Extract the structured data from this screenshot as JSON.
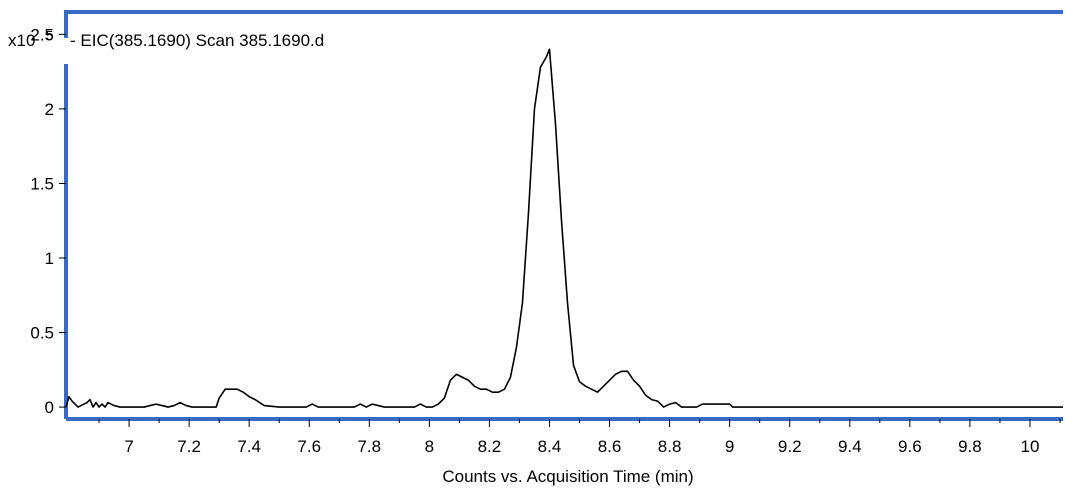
{
  "chart_data": {
    "type": "line",
    "title": "- EIC(385.1690) Scan 385.1690.d",
    "xlabel": "Counts vs. Acquisition Time (min)",
    "ylabel": "",
    "y_scale_label": "x10",
    "y_scale_exponent": "5",
    "xlim": [
      6.79,
      10.11
    ],
    "ylim": [
      -0.08,
      2.65
    ],
    "x_ticks": [
      7,
      7.2,
      7.4,
      7.6,
      7.8,
      8,
      8.2,
      8.4,
      8.6,
      8.8,
      9,
      9.2,
      9.4,
      9.6,
      9.8,
      10
    ],
    "y_ticks": [
      0,
      0.5,
      1,
      1.5,
      2,
      2.5
    ],
    "x_tick_labels": [
      "7",
      "7.2",
      "7.4",
      "7.6",
      "7.8",
      "8",
      "8.2",
      "8.4",
      "8.6",
      "8.8",
      "9",
      "9.2",
      "9.4",
      "9.6",
      "9.8",
      "10"
    ],
    "y_tick_labels": [
      "0",
      "0.5",
      "1",
      "1.5",
      "2",
      "2.5"
    ],
    "grid": false,
    "line_color": "#000000",
    "frame_color": "#3a6bc4",
    "series": [
      {
        "x": [
          6.79,
          6.8,
          6.81,
          6.83,
          6.85,
          6.86,
          6.87,
          6.88,
          6.89,
          6.9,
          6.91,
          6.92,
          6.93,
          6.95,
          6.97,
          7.0,
          7.05,
          7.07,
          7.09,
          7.11,
          7.13,
          7.15,
          7.17,
          7.19,
          7.21,
          7.25,
          7.29,
          7.3,
          7.32,
          7.34,
          7.36,
          7.38,
          7.4,
          7.42,
          7.45,
          7.5,
          7.55,
          7.59,
          7.61,
          7.63,
          7.7,
          7.75,
          7.77,
          7.79,
          7.81,
          7.85,
          7.9,
          7.95,
          7.97,
          7.99,
          8.01,
          8.03,
          8.05,
          8.07,
          8.09,
          8.11,
          8.13,
          8.15,
          8.17,
          8.19,
          8.21,
          8.23,
          8.25,
          8.27,
          8.29,
          8.31,
          8.33,
          8.35,
          8.37,
          8.39,
          8.4,
          8.42,
          8.44,
          8.46,
          8.48,
          8.5,
          8.52,
          8.54,
          8.56,
          8.58,
          8.6,
          8.62,
          8.64,
          8.66,
          8.68,
          8.7,
          8.72,
          8.74,
          8.76,
          8.78,
          8.8,
          8.82,
          8.84,
          8.85,
          8.87,
          8.89,
          8.91,
          8.95,
          8.97,
          8.99,
          9.0,
          9.01,
          9.02,
          9.1,
          9.5,
          10.11
        ],
        "y": [
          0.0,
          0.07,
          0.04,
          0.0,
          0.02,
          0.03,
          0.05,
          0.0,
          0.03,
          0.0,
          0.02,
          0.0,
          0.03,
          0.01,
          0.0,
          0.0,
          0.0,
          0.01,
          0.02,
          0.01,
          0.0,
          0.01,
          0.03,
          0.01,
          0.0,
          0.0,
          0.0,
          0.06,
          0.12,
          0.12,
          0.12,
          0.1,
          0.07,
          0.05,
          0.01,
          0.0,
          0.0,
          0.0,
          0.02,
          0.0,
          0.0,
          0.0,
          0.02,
          0.0,
          0.02,
          0.0,
          0.0,
          0.0,
          0.02,
          0.0,
          0.0,
          0.02,
          0.06,
          0.18,
          0.22,
          0.2,
          0.18,
          0.14,
          0.12,
          0.12,
          0.1,
          0.1,
          0.12,
          0.2,
          0.4,
          0.7,
          1.3,
          2.0,
          2.28,
          2.35,
          2.4,
          1.9,
          1.25,
          0.7,
          0.28,
          0.17,
          0.14,
          0.12,
          0.1,
          0.14,
          0.18,
          0.22,
          0.24,
          0.24,
          0.18,
          0.14,
          0.08,
          0.05,
          0.04,
          0.0,
          0.02,
          0.03,
          0.0,
          0.0,
          0.0,
          0.0,
          0.02,
          0.02,
          0.02,
          0.02,
          0.02,
          0.0,
          0.0,
          0.0,
          0.0,
          0.0
        ]
      }
    ]
  }
}
